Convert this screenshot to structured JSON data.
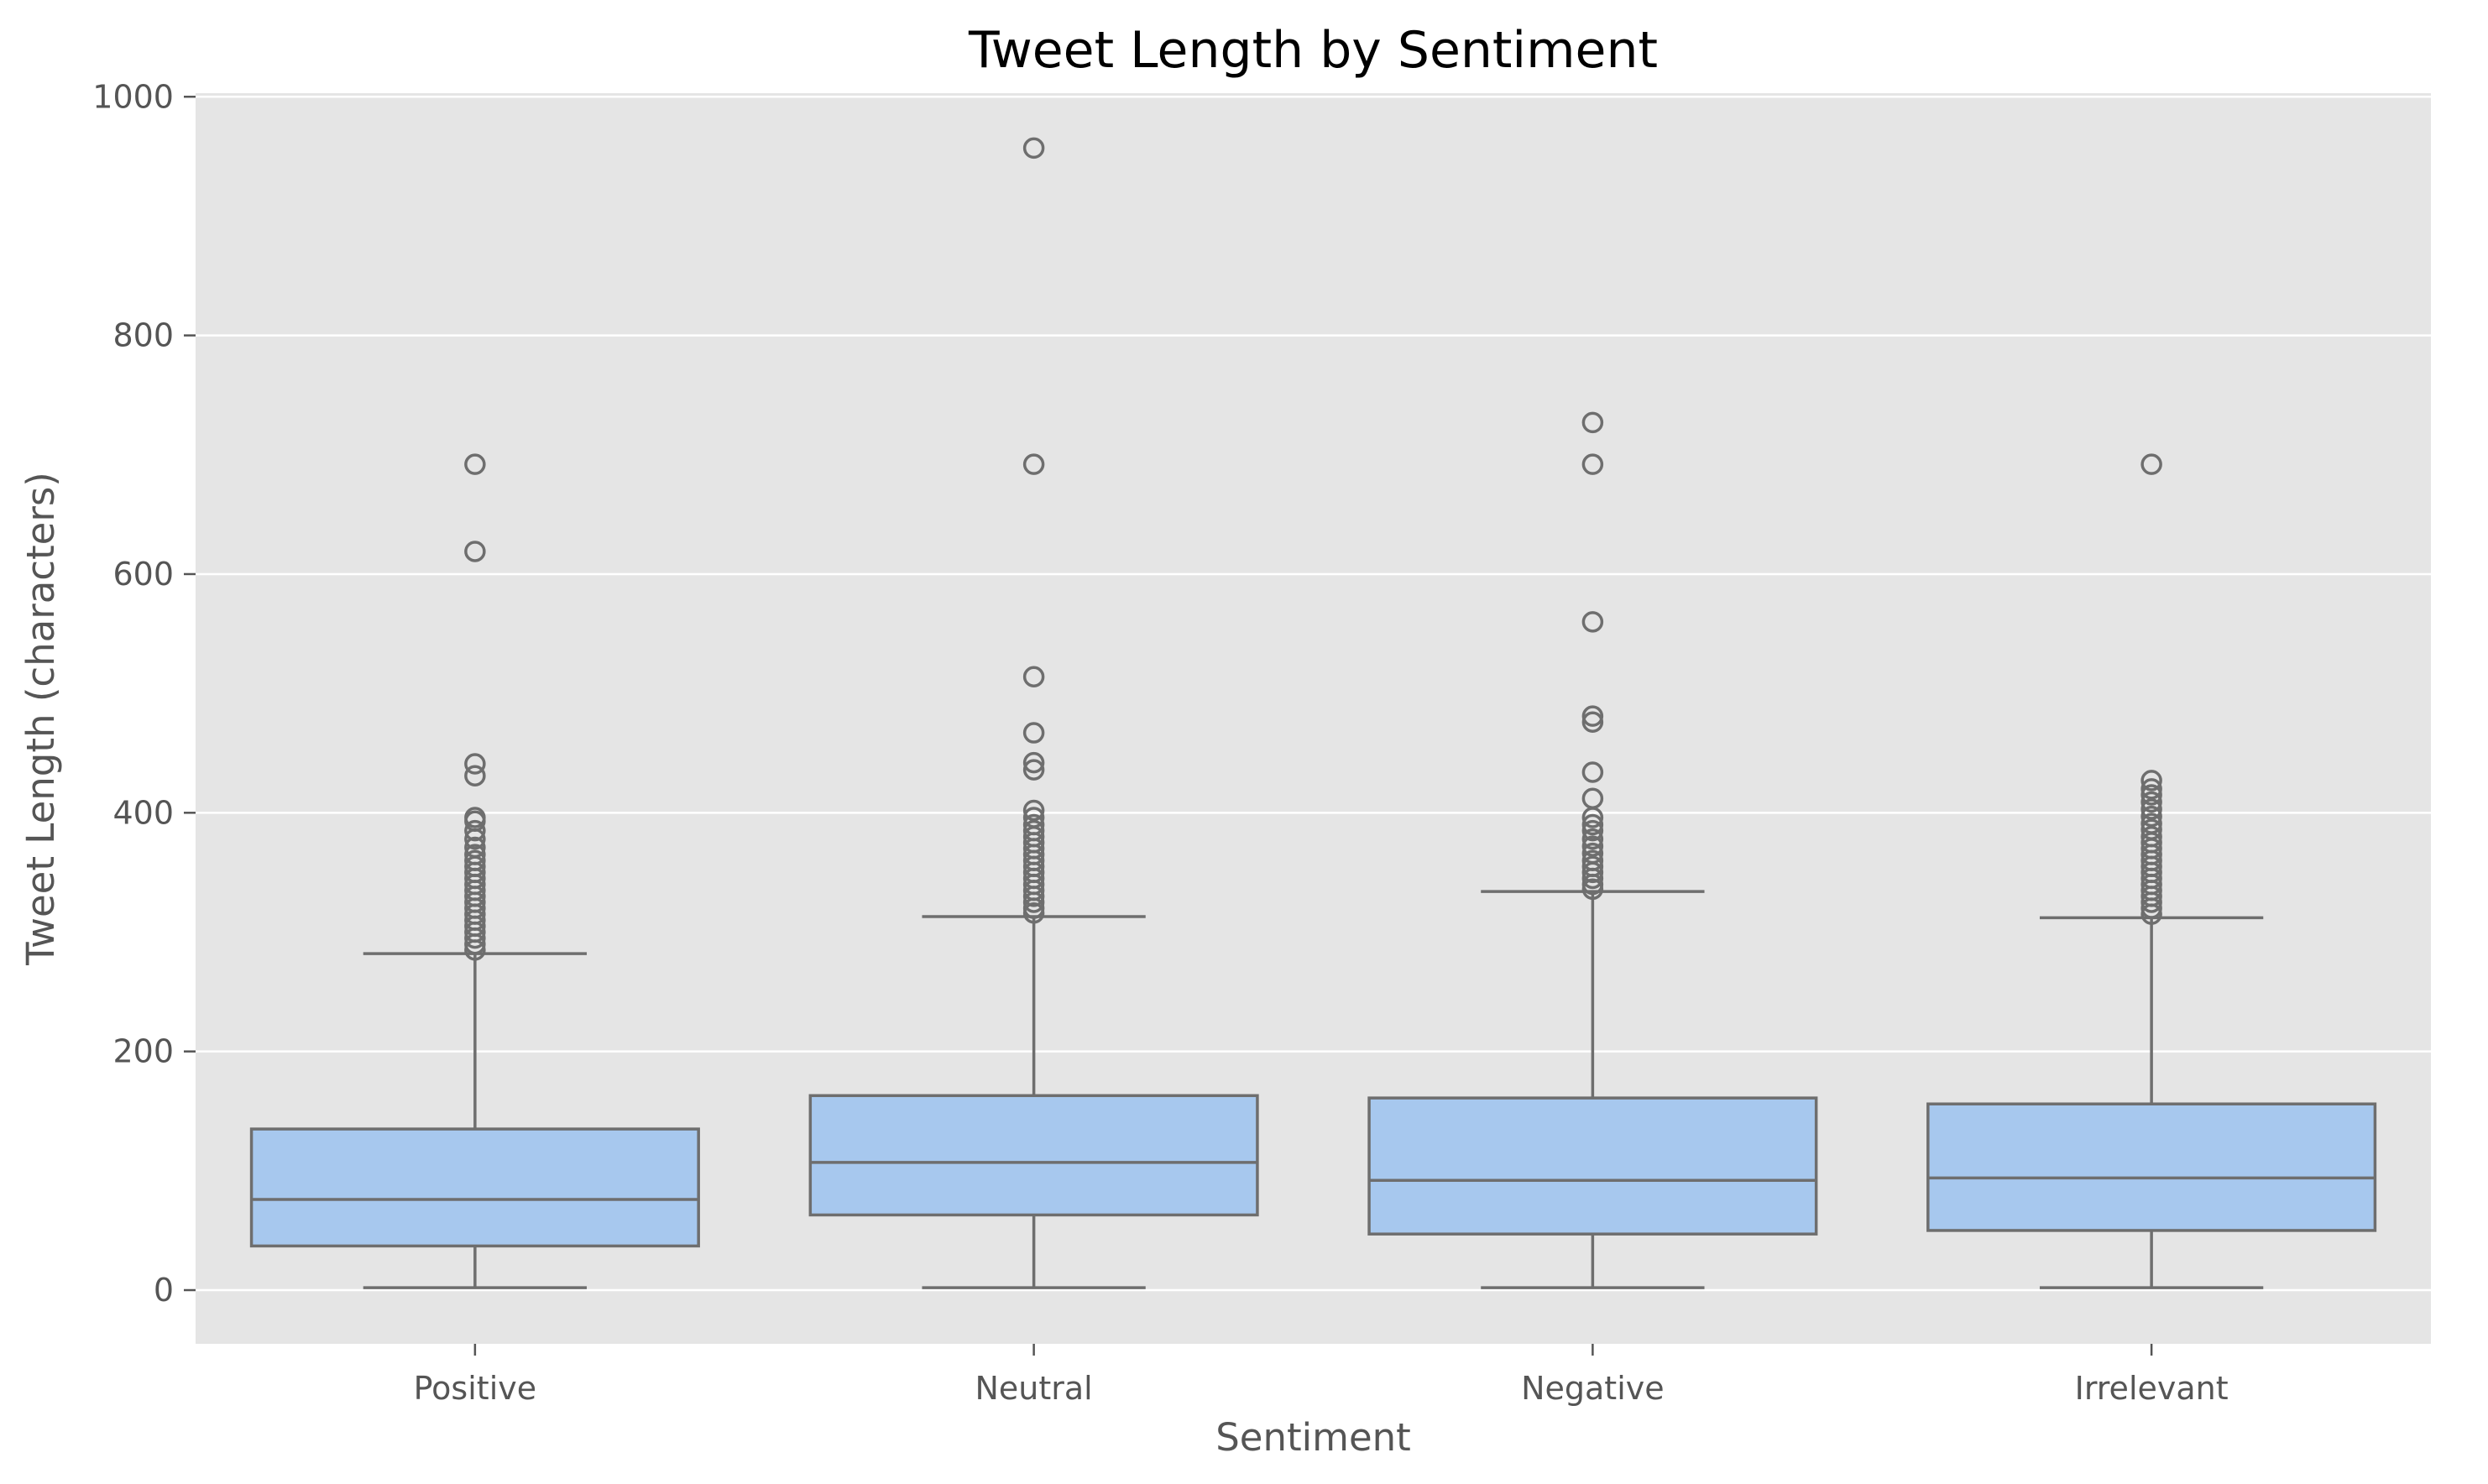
{
  "chart_data": {
    "type": "box",
    "title": "Tweet Length by Sentiment",
    "xlabel": "Sentiment",
    "ylabel": "Tweet Length (characters)",
    "ylim": [
      -45,
      1003
    ],
    "yticks": [
      0,
      200,
      400,
      600,
      800,
      1000
    ],
    "ytick_labels": [
      "0",
      "200",
      "400",
      "600",
      "800",
      "1000"
    ],
    "grid": true,
    "categories": [
      "Positive",
      "Neutral",
      "Negative",
      "Irrelevant"
    ],
    "colors": {
      "box_fill": "#a7c8ee",
      "box_edge": "#6e6e6e",
      "plot_bg": "#e5e5e5",
      "grid": "#ffffff",
      "outlier": "#6e6e6e"
    },
    "boxes": [
      {
        "category": "Positive",
        "whisker_low": 2,
        "q1": 37,
        "median": 76,
        "q3": 135,
        "whisker_high": 282,
        "outliers": [
          692,
          619,
          441,
          431,
          396,
          393,
          385,
          378,
          371,
          365,
          360,
          355,
          350,
          345,
          340,
          335,
          330,
          325,
          320,
          315,
          310,
          305,
          300,
          295,
          290,
          285
        ]
      },
      {
        "category": "Neutral",
        "whisker_low": 2,
        "q1": 63,
        "median": 107,
        "q3": 163,
        "whisker_high": 313,
        "outliers": [
          957,
          692,
          514,
          467,
          442,
          436,
          402,
          396,
          390,
          385,
          380,
          375,
          370,
          365,
          360,
          355,
          350,
          345,
          340,
          335,
          330,
          325,
          320,
          316
        ]
      },
      {
        "category": "Negative",
        "whisker_low": 2,
        "q1": 47,
        "median": 92,
        "q3": 161,
        "whisker_high": 334,
        "outliers": [
          727,
          692,
          560,
          481,
          476,
          434,
          412,
          396,
          390,
          385,
          378,
          372,
          366,
          360,
          355,
          350,
          345,
          340,
          336
        ]
      },
      {
        "category": "Irrelevant",
        "whisker_low": 2,
        "q1": 50,
        "median": 94,
        "q3": 156,
        "whisker_high": 312,
        "outliers": [
          692,
          427,
          420,
          415,
          409,
          403,
          397,
          391,
          386,
          380,
          375,
          370,
          365,
          360,
          355,
          350,
          345,
          340,
          335,
          330,
          325,
          320,
          315
        ]
      }
    ]
  }
}
